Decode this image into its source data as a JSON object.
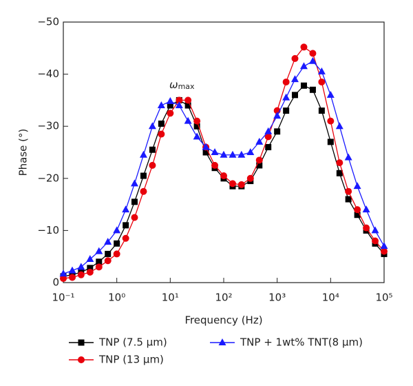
{
  "chart_data": {
    "type": "line",
    "xlabel": "Frequency (Hz)",
    "ylabel": "Phase (°)",
    "annotation": {
      "symbol": "ω",
      "subscript": "max"
    },
    "xscale": "log",
    "xlim": [
      0.1,
      100000
    ],
    "ylim": [
      0,
      -50
    ],
    "xticks": [
      {
        "value": 0.1,
        "label": "10⁻¹"
      },
      {
        "value": 1,
        "label": "10⁰"
      },
      {
        "value": 10,
        "label": "10¹"
      },
      {
        "value": 100,
        "label": "10²"
      },
      {
        "value": 1000,
        "label": "10³"
      },
      {
        "value": 10000,
        "label": "10⁴"
      },
      {
        "value": 100000,
        "label": "10⁵"
      }
    ],
    "yticks": [
      0,
      {
        "value": -10,
        "label": "−10"
      },
      {
        "value": -20,
        "label": "−20"
      },
      {
        "value": -30,
        "label": "−30"
      },
      {
        "value": -40,
        "label": "−40"
      },
      {
        "value": -50,
        "label": "−50"
      }
    ],
    "x": [
      0.1,
      0.147,
      0.215,
      0.316,
      0.464,
      0.681,
      1,
      1.47,
      2.15,
      3.16,
      4.64,
      6.81,
      10,
      14.7,
      21.5,
      31.6,
      46.4,
      68.1,
      100,
      147,
      215,
      316,
      464,
      681,
      1000,
      1470,
      2150,
      3160,
      4640,
      6810,
      10000,
      14700,
      21500,
      31600,
      46400,
      68100,
      100000
    ],
    "series": [
      {
        "name": "TNP (7.5 μm)",
        "color": "#000000",
        "marker": "square",
        "values": [
          -1.2,
          -1.5,
          -2.0,
          -2.8,
          -4.0,
          -5.5,
          -7.5,
          -11,
          -15.5,
          -20.5,
          -25.5,
          -30.5,
          -34,
          -35,
          -34,
          -30,
          -25,
          -22,
          -20,
          -18.5,
          -18.5,
          -19.5,
          -22.5,
          -26,
          -29,
          -33,
          -36,
          -37.8,
          -37,
          -33,
          -27,
          -21,
          -16,
          -13,
          -10,
          -7.5,
          -5.5
        ]
      },
      {
        "name": "TNP (13 μm)",
        "color": "#e8000b",
        "marker": "circle",
        "values": [
          -0.8,
          -1.0,
          -1.5,
          -2.0,
          -3.0,
          -4.2,
          -5.5,
          -8.5,
          -12.5,
          -17.5,
          -22.5,
          -28.5,
          -32.5,
          -35,
          -35,
          -31,
          -26,
          -22.5,
          -20.5,
          -19,
          -18.8,
          -20,
          -23.5,
          -28,
          -33,
          -38.5,
          -43,
          -45.2,
          -44,
          -38.5,
          -31,
          -23,
          -17.5,
          -14,
          -10.5,
          -8,
          -6
        ]
      },
      {
        "name": "TNP + 1wt% TNT(8 μm)",
        "color": "#1a1aff",
        "marker": "triangle",
        "values": [
          -1.7,
          -2.3,
          -3.0,
          -4.5,
          -6.0,
          -7.8,
          -10,
          -14,
          -19,
          -24.5,
          -30,
          -34,
          -34.8,
          -34,
          -31,
          -28,
          -26,
          -25,
          -24.5,
          -24.5,
          -24.5,
          -25,
          -27,
          -29,
          -32,
          -35.5,
          -39,
          -41.5,
          -42.5,
          -40.5,
          -36,
          -30,
          -24,
          -18.5,
          -14,
          -10,
          -7
        ]
      }
    ]
  }
}
